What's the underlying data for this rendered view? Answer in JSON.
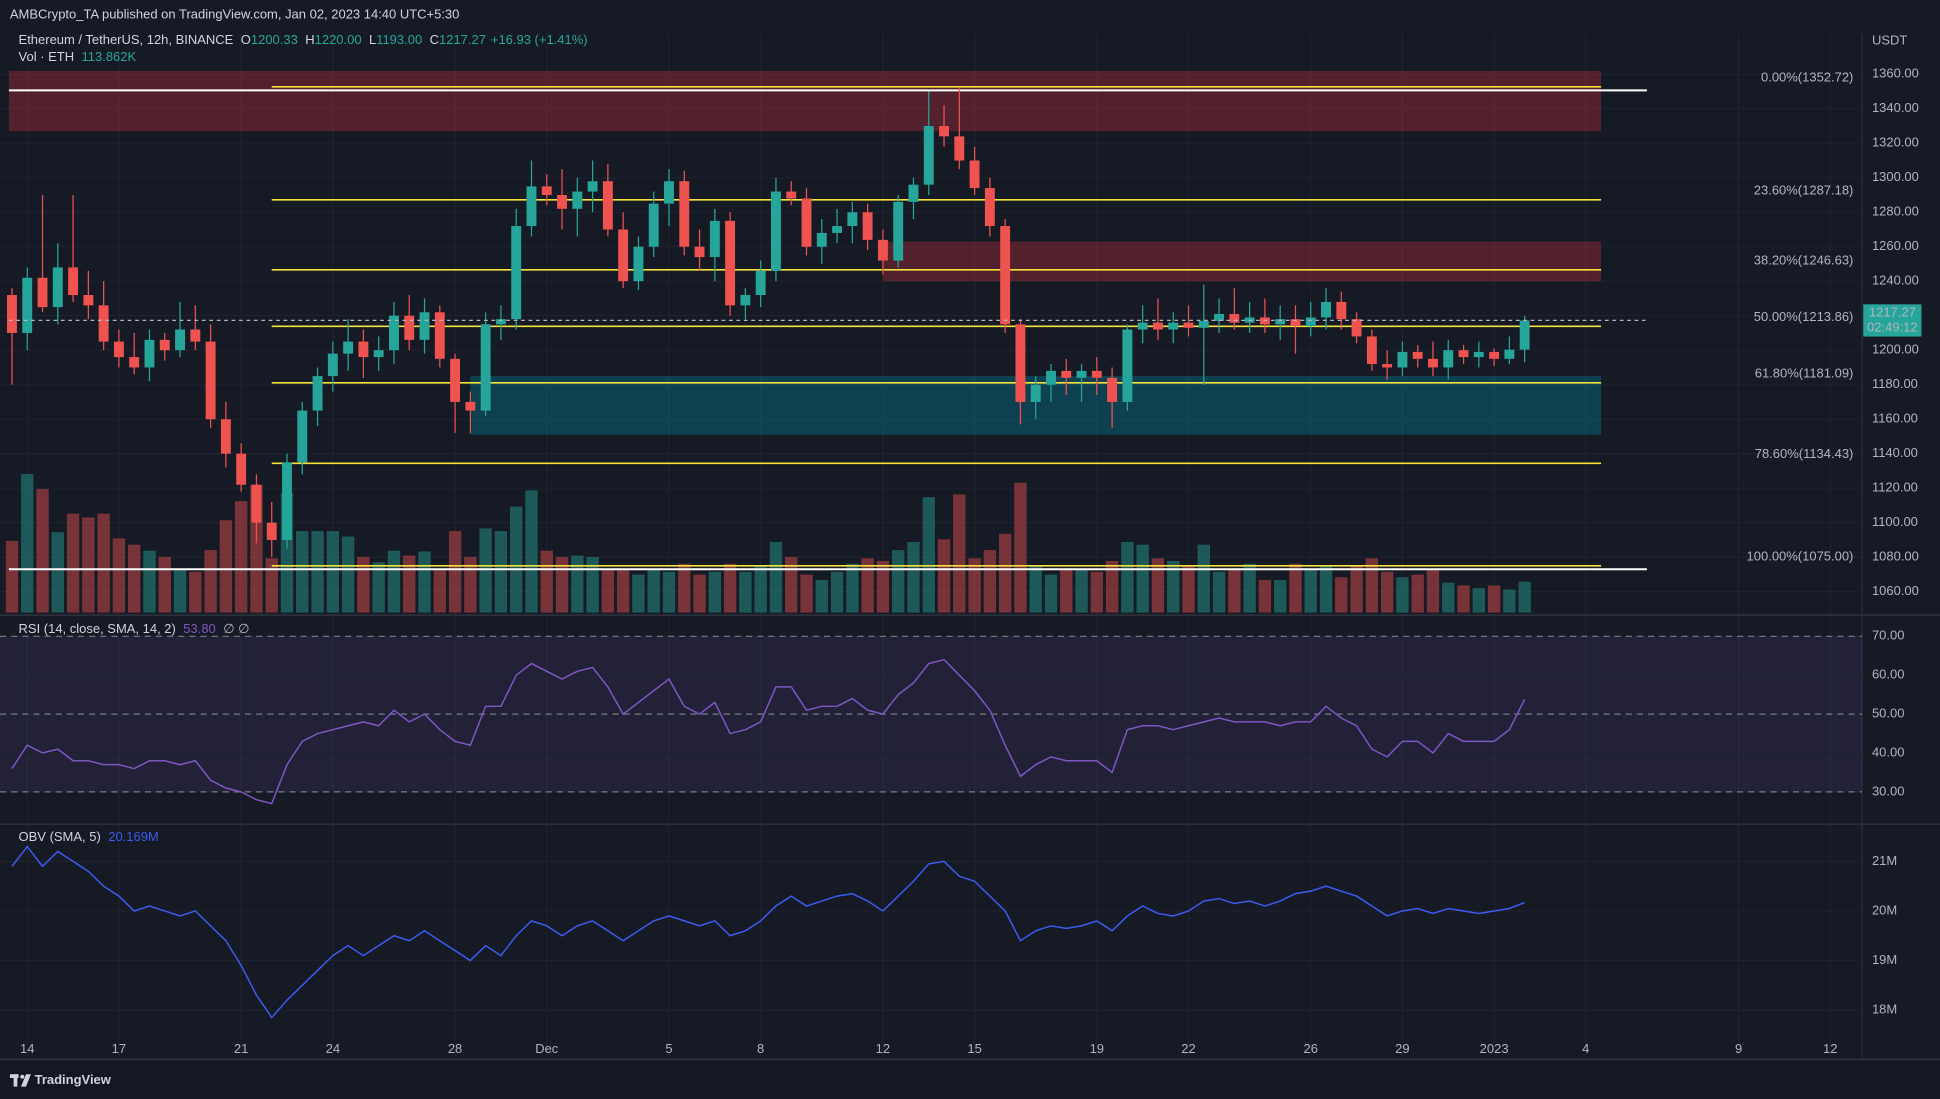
{
  "published": "AMBCrypto_TA published on TradingView.com, Jan 02, 2023 14:40 UTC+5:30",
  "footer": "TradingView",
  "chart_data": [
    {
      "type": "candlestick",
      "symbol": "Ethereum / TetherUS, 12h, BINANCE",
      "header_values": [
        {
          "key": "O",
          "label": "1200.33"
        },
        {
          "key": "H",
          "label": "1220.00"
        },
        {
          "key": "L",
          "label": "1193.00"
        },
        {
          "key": "C",
          "label": "1217.27"
        }
      ],
      "change": "+16.93 (+1.41%)",
      "volume_title": "Vol · ETH",
      "volume_label": "113.862K",
      "y_axis_label": "USDT",
      "countdown": "02:49:12",
      "up_color": "#26a69a",
      "down_color": "#ef5350",
      "x": [
        -0.5,
        0,
        0.5,
        1,
        1.5,
        2,
        2.5,
        3,
        3.5,
        4,
        4.5,
        5,
        5.5,
        6,
        6.5,
        7,
        7.5,
        8,
        8.5,
        9,
        9.5,
        10,
        10.5,
        11,
        11.5,
        12,
        12.5,
        13,
        13.5,
        14,
        14.5,
        15,
        15.5,
        16,
        16.5,
        17,
        17.5,
        18,
        18.5,
        19,
        19.5,
        20,
        20.5,
        21,
        21.5,
        22,
        22.5,
        23,
        23.5,
        24,
        24.5,
        25,
        25.5,
        26,
        26.5,
        27,
        27.5,
        28,
        28.5,
        29,
        29.5,
        30,
        30.5,
        31,
        31.5,
        32,
        32.5,
        33,
        33.5,
        34,
        34.5,
        35,
        35.5,
        36,
        36.5,
        37,
        37.5,
        38,
        38.5,
        39,
        39.5,
        40,
        40.5,
        41,
        41.5,
        42,
        42.5,
        43,
        43.5,
        44,
        44.5,
        45,
        45.5,
        46,
        46.5,
        47,
        47.5,
        48,
        48.5,
        49
      ],
      "open": [
        1232,
        1210,
        1242,
        1225,
        1248,
        1232,
        1226,
        1205,
        1196,
        1190,
        1206,
        1200,
        1212,
        1205,
        1160,
        1140,
        1122,
        1100,
        1090,
        1135,
        1165,
        1185,
        1198,
        1205,
        1196,
        1200,
        1220,
        1206,
        1222,
        1195,
        1170,
        1165,
        1215,
        1218,
        1272,
        1295,
        1290,
        1282,
        1292,
        1298,
        1270,
        1240,
        1260,
        1285,
        1298,
        1260,
        1254,
        1275,
        1226,
        1232,
        1246,
        1292,
        1288,
        1260,
        1268,
        1272,
        1280,
        1264,
        1252,
        1286,
        1296,
        1330,
        1324,
        1310,
        1294,
        1272,
        1215,
        1170,
        1180,
        1188,
        1184,
        1188,
        1184,
        1170,
        1212,
        1216,
        1212,
        1216,
        1213,
        1217,
        1221,
        1216,
        1219,
        1215,
        1218,
        1214,
        1219,
        1228,
        1218,
        1208,
        1192,
        1190,
        1199,
        1195,
        1190,
        1200,
        1196,
        1199,
        1195,
        1200.33
      ],
      "high": [
        1236,
        1248,
        1290,
        1262,
        1290,
        1246,
        1240,
        1212,
        1210,
        1212,
        1210,
        1228,
        1226,
        1215,
        1170,
        1146,
        1128,
        1112,
        1140,
        1170,
        1190,
        1205,
        1218,
        1212,
        1208,
        1228,
        1232,
        1230,
        1226,
        1198,
        1176,
        1222,
        1226,
        1282,
        1310,
        1302,
        1305,
        1300,
        1310,
        1308,
        1280,
        1266,
        1292,
        1305,
        1304,
        1270,
        1282,
        1280,
        1236,
        1252,
        1300,
        1298,
        1294,
        1276,
        1282,
        1286,
        1285,
        1270,
        1290,
        1300,
        1350,
        1342,
        1352,
        1318,
        1300,
        1276,
        1218,
        1185,
        1192,
        1195,
        1192,
        1196,
        1190,
        1215,
        1226,
        1230,
        1222,
        1226,
        1238,
        1230,
        1236,
        1228,
        1230,
        1226,
        1226,
        1228,
        1236,
        1234,
        1222,
        1212,
        1200,
        1205,
        1203,
        1205,
        1206,
        1203,
        1205,
        1201,
        1208,
        1220
      ],
      "low": [
        1180,
        1200,
        1222,
        1215,
        1228,
        1218,
        1200,
        1190,
        1186,
        1182,
        1194,
        1196,
        1200,
        1155,
        1132,
        1118,
        1088,
        1080,
        1085,
        1128,
        1156,
        1176,
        1188,
        1184,
        1188,
        1192,
        1200,
        1198,
        1190,
        1152,
        1152,
        1162,
        1206,
        1212,
        1266,
        1284,
        1270,
        1266,
        1280,
        1266,
        1236,
        1235,
        1254,
        1272,
        1255,
        1246,
        1240,
        1220,
        1218,
        1225,
        1240,
        1284,
        1255,
        1250,
        1262,
        1262,
        1258,
        1244,
        1248,
        1276,
        1290,
        1318,
        1305,
        1290,
        1266,
        1210,
        1157,
        1160,
        1170,
        1174,
        1170,
        1174,
        1155,
        1165,
        1204,
        1206,
        1204,
        1208,
        1180,
        1210,
        1212,
        1210,
        1210,
        1206,
        1198,
        1208,
        1212,
        1212,
        1204,
        1188,
        1183,
        1185,
        1190,
        1185,
        1183,
        1192,
        1190,
        1191,
        1192,
        1193
      ],
      "close": [
        1210,
        1242,
        1225,
        1248,
        1232,
        1226,
        1205,
        1196,
        1190,
        1206,
        1200,
        1212,
        1205,
        1160,
        1140,
        1122,
        1100,
        1090,
        1135,
        1165,
        1185,
        1198,
        1205,
        1196,
        1200,
        1220,
        1206,
        1222,
        1195,
        1170,
        1165,
        1215,
        1218,
        1272,
        1295,
        1290,
        1282,
        1292,
        1298,
        1270,
        1240,
        1260,
        1285,
        1298,
        1260,
        1254,
        1275,
        1226,
        1232,
        1246,
        1292,
        1288,
        1260,
        1268,
        1272,
        1280,
        1264,
        1252,
        1286,
        1296,
        1330,
        1324,
        1310,
        1294,
        1272,
        1215,
        1170,
        1180,
        1188,
        1184,
        1188,
        1184,
        1170,
        1212,
        1216,
        1212,
        1216,
        1213,
        1217,
        1221,
        1216,
        1219,
        1215,
        1218,
        1214,
        1219,
        1228,
        1218,
        1208,
        1192,
        1190,
        1199,
        1195,
        1190,
        1200,
        1196,
        1199,
        1195,
        1200.33,
        1217.27
      ],
      "volume": [
        264,
        510,
        455,
        296,
        364,
        350,
        364,
        273,
        250,
        228,
        205,
        160,
        150,
        230,
        340,
        410,
        470,
        200,
        440,
        300,
        300,
        300,
        280,
        205,
        185,
        228,
        210,
        225,
        160,
        300,
        205,
        310,
        300,
        390,
        450,
        228,
        205,
        210,
        205,
        160,
        160,
        140,
        160,
        150,
        180,
        140,
        150,
        180,
        150,
        170,
        260,
        205,
        140,
        120,
        150,
        180,
        200,
        190,
        230,
        260,
        425,
        270,
        435,
        200,
        230,
        290,
        478,
        170,
        140,
        160,
        160,
        150,
        190,
        260,
        250,
        200,
        190,
        170,
        250,
        150,
        160,
        180,
        120,
        120,
        180,
        160,
        170,
        130,
        170,
        200,
        150,
        130,
        140,
        160,
        110,
        100,
        90,
        100,
        85,
        113.862
      ],
      "xlim": [
        -0.6,
        60
      ],
      "xticks": [
        {
          "value": 0,
          "label": "14"
        },
        {
          "value": 3,
          "label": "17"
        },
        {
          "value": 7,
          "label": "21"
        },
        {
          "value": 10,
          "label": "24"
        },
        {
          "value": 14,
          "label": "28"
        },
        {
          "value": 17,
          "label": "Dec"
        },
        {
          "value": 21,
          "label": "5"
        },
        {
          "value": 24,
          "label": "8"
        },
        {
          "value": 28,
          "label": "12"
        },
        {
          "value": 31,
          "label": "15"
        },
        {
          "value": 35,
          "label": "19"
        },
        {
          "value": 38,
          "label": "22"
        },
        {
          "value": 42,
          "label": "26"
        },
        {
          "value": 45,
          "label": "29"
        },
        {
          "value": 48,
          "label": "2023"
        },
        {
          "value": 51,
          "label": "4"
        },
        {
          "value": 56,
          "label": "9"
        },
        {
          "value": 59,
          "label": "12"
        }
      ],
      "ylim": [
        1046.4,
        1383.7
      ],
      "yticks": [
        {
          "value": 1060,
          "label": "1060.00"
        },
        {
          "value": 1080,
          "label": "1080.00"
        },
        {
          "value": 1100,
          "label": "1100.00"
        },
        {
          "value": 1120,
          "label": "1120.00"
        },
        {
          "value": 1140,
          "label": "1140.00"
        },
        {
          "value": 1160,
          "label": "1160.00"
        },
        {
          "value": 1180,
          "label": "1180.00"
        },
        {
          "value": 1200,
          "label": "1200.00"
        },
        {
          "value": 1220,
          "label": "1220.00"
        },
        {
          "value": 1240,
          "label": "1240.00"
        },
        {
          "value": 1260,
          "label": "1260.00"
        },
        {
          "value": 1280,
          "label": "1280.00"
        },
        {
          "value": 1300,
          "label": "1300.00"
        },
        {
          "value": 1320,
          "label": "1320.00"
        },
        {
          "value": 1340,
          "label": "1340.00"
        },
        {
          "value": 1360,
          "label": "1360.00"
        }
      ],
      "grid": true,
      "zones": [
        {
          "start": -0.6,
          "end": 51.5,
          "from": 1327,
          "to": 1362,
          "color": "rgba(242,54,69,0.28)"
        },
        {
          "start": 28,
          "end": 51.5,
          "from": 1240,
          "to": 1263,
          "color": "rgba(242,54,69,0.28)"
        },
        {
          "start": 14.5,
          "end": 51.5,
          "from": 1151,
          "to": 1185,
          "color": "rgba(0,150,170,0.32)"
        }
      ],
      "hlines": [
        {
          "start": -0.6,
          "end": 53,
          "value": 1350.7,
          "color": "#ffffff"
        },
        {
          "start": -0.6,
          "end": 53,
          "value": 1073,
          "color": "#ffffff"
        }
      ],
      "fib": {
        "start": 8,
        "end": 51.5,
        "color": "#f5e23b",
        "levels": [
          {
            "value": 1352.72,
            "label": "0.00%(1352.72)"
          },
          {
            "value": 1287.18,
            "label": "23.60%(1287.18)"
          },
          {
            "value": 1246.63,
            "label": "38.20%(1246.63)"
          },
          {
            "value": 1213.86,
            "label": "50.00%(1213.86)"
          },
          {
            "value": 1181.09,
            "label": "61.80%(1181.09)"
          },
          {
            "value": 1134.43,
            "label": "78.60%(1134.43)"
          },
          {
            "value": 1075,
            "label": "100.00%(1075.00)"
          }
        ]
      }
    },
    {
      "type": "line",
      "title": "RSI (14, close, SMA, 14, 2)",
      "value_label": "53.80",
      "na_marks": "∅ ∅",
      "color": "#7e57c2",
      "band": [
        30,
        70
      ],
      "band_color": "rgba(126,87,194,0.12)",
      "dashed": [
        30,
        50,
        70
      ],
      "values": [
        36,
        42,
        40,
        41,
        38,
        38,
        37,
        37,
        36,
        38,
        38,
        37,
        38,
        33,
        31,
        30,
        28,
        27,
        37,
        43,
        45,
        46,
        47,
        48,
        47,
        51,
        48,
        50,
        46,
        43,
        42,
        52,
        52,
        60,
        63,
        61,
        59,
        61,
        62,
        57,
        50,
        53,
        56,
        59,
        52,
        50,
        53,
        45,
        46,
        48,
        57,
        57,
        51,
        52,
        52,
        54,
        51,
        50,
        55,
        58,
        63,
        64,
        60,
        56,
        51,
        42,
        34,
        37,
        39,
        38,
        38,
        38,
        35,
        46,
        47,
        47,
        46,
        47,
        48,
        49,
        48,
        48,
        48,
        47,
        48,
        48,
        52,
        49,
        47,
        41,
        39,
        43,
        43,
        40,
        45,
        43,
        43,
        43,
        46,
        53.8
      ],
      "ylim": [
        22,
        74.5
      ],
      "yticks": [
        {
          "value": 30,
          "label": "30.00"
        },
        {
          "value": 40,
          "label": "40.00"
        },
        {
          "value": 50,
          "label": "50.00"
        },
        {
          "value": 60,
          "label": "60.00"
        },
        {
          "value": 70,
          "label": "70.00"
        }
      ]
    },
    {
      "type": "line",
      "title": "OBV (SMA, 5)",
      "value_label": "20.169M",
      "color": "#3d5af1",
      "values": [
        20.9,
        21.3,
        20.9,
        21.2,
        21.0,
        20.8,
        20.5,
        20.3,
        20.0,
        20.1,
        20.0,
        19.9,
        20.0,
        19.7,
        19.4,
        18.9,
        18.3,
        17.85,
        18.2,
        18.5,
        18.8,
        19.1,
        19.3,
        19.1,
        19.3,
        19.5,
        19.4,
        19.6,
        19.4,
        19.2,
        19.0,
        19.3,
        19.1,
        19.5,
        19.8,
        19.7,
        19.5,
        19.7,
        19.8,
        19.6,
        19.4,
        19.6,
        19.8,
        19.9,
        19.8,
        19.7,
        19.8,
        19.5,
        19.6,
        19.8,
        20.1,
        20.3,
        20.1,
        20.2,
        20.3,
        20.35,
        20.2,
        20.0,
        20.3,
        20.6,
        20.95,
        21.0,
        20.7,
        20.6,
        20.3,
        20.0,
        19.4,
        19.6,
        19.7,
        19.65,
        19.7,
        19.8,
        19.6,
        19.9,
        20.1,
        19.95,
        19.9,
        20.0,
        20.2,
        20.25,
        20.15,
        20.2,
        20.1,
        20.2,
        20.35,
        20.4,
        20.5,
        20.4,
        20.3,
        20.1,
        19.9,
        20.0,
        20.05,
        19.95,
        20.05,
        20.0,
        19.95,
        20.0,
        20.05,
        20.169
      ],
      "ylim": [
        17.03,
        21.7
      ],
      "yticks": [
        {
          "value": 18,
          "label": "18M"
        },
        {
          "value": 19,
          "label": "19M"
        },
        {
          "value": 20,
          "label": "20M"
        },
        {
          "value": 21,
          "label": "21M"
        }
      ]
    }
  ]
}
